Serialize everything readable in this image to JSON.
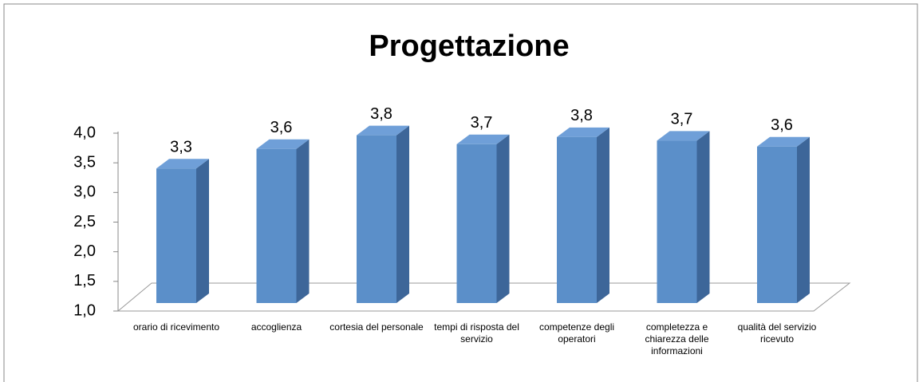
{
  "chart_data": {
    "type": "bar3d",
    "title": "Progettazione",
    "categories": [
      "orario di ricevimento",
      "accoglienza",
      "cortesia del personale",
      "tempi di risposta del servizio",
      "competenze degli operatori",
      "completezza e chiarezza delle informazioni",
      "qualità del servizio ricevuto"
    ],
    "values": [
      3.27,
      3.6,
      3.83,
      3.68,
      3.8,
      3.74,
      3.64
    ],
    "value_labels": [
      "3,3",
      "3,6",
      "3,8",
      "3,7",
      "3,8",
      "3,7",
      "3,6"
    ],
    "color": "#5b8fc9",
    "ylim": [
      1,
      4
    ],
    "yticks": [
      {
        "value": 1,
        "label": "1,0"
      },
      {
        "value": 1.5,
        "label": "1,5"
      },
      {
        "value": 2,
        "label": "2,0"
      },
      {
        "value": 2.5,
        "label": "2,5"
      },
      {
        "value": 3,
        "label": "3,0"
      },
      {
        "value": 3.5,
        "label": "3,5"
      },
      {
        "value": 4,
        "label": "4,0"
      }
    ]
  }
}
